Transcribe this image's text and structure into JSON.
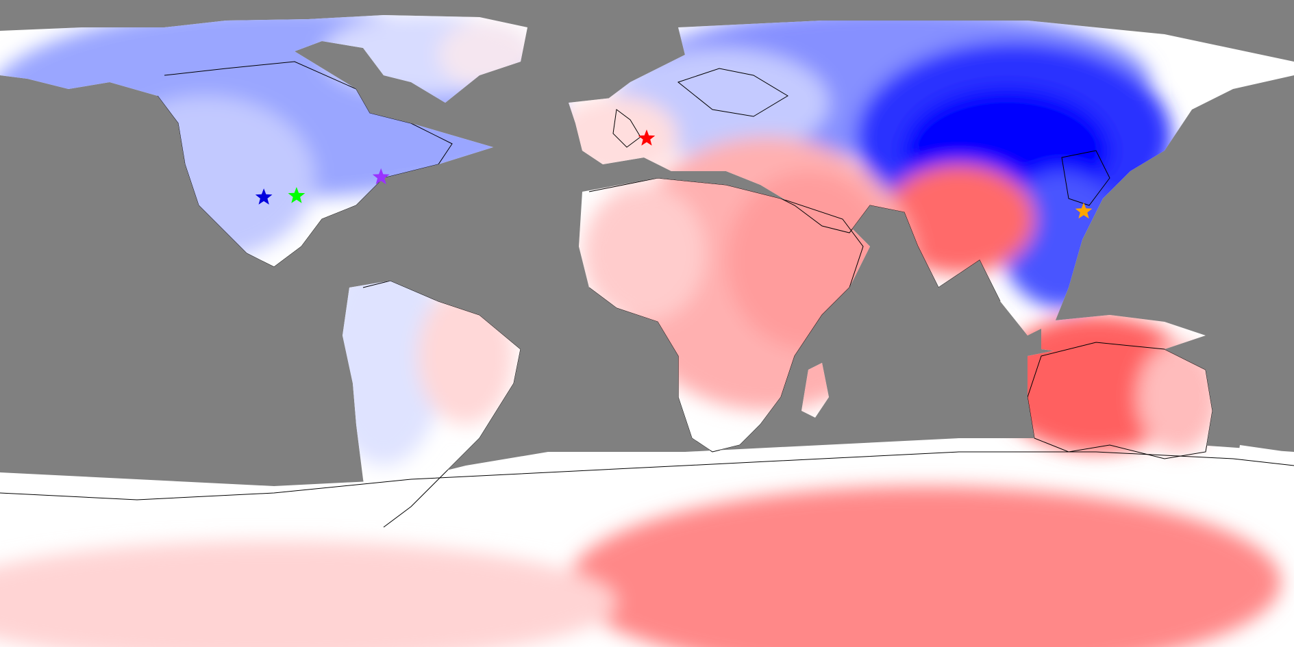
{
  "map": {
    "projection": "equirectangular",
    "background_color": "#808080",
    "coastline_color": "#000000",
    "color_scale": {
      "negative_color": "#0000ff",
      "neutral_color": "#ffffff",
      "positive_color": "#ff3333"
    }
  },
  "markers": [
    {
      "name": "london-star",
      "lon": -0.1,
      "lat": 51.5,
      "color": "#ff0000"
    },
    {
      "name": "new-york-star",
      "lon": -74.0,
      "lat": 40.7,
      "color": "#9933ff"
    },
    {
      "name": "oklahoma-star",
      "lon": -97.5,
      "lat": 35.5,
      "color": "#00ff00"
    },
    {
      "name": "new-mexico-star",
      "lon": -106.6,
      "lat": 35.1,
      "color": "#0000dd"
    },
    {
      "name": "shanghai-star",
      "lon": 121.5,
      "lat": 31.2,
      "color": "#ffa500"
    }
  ]
}
